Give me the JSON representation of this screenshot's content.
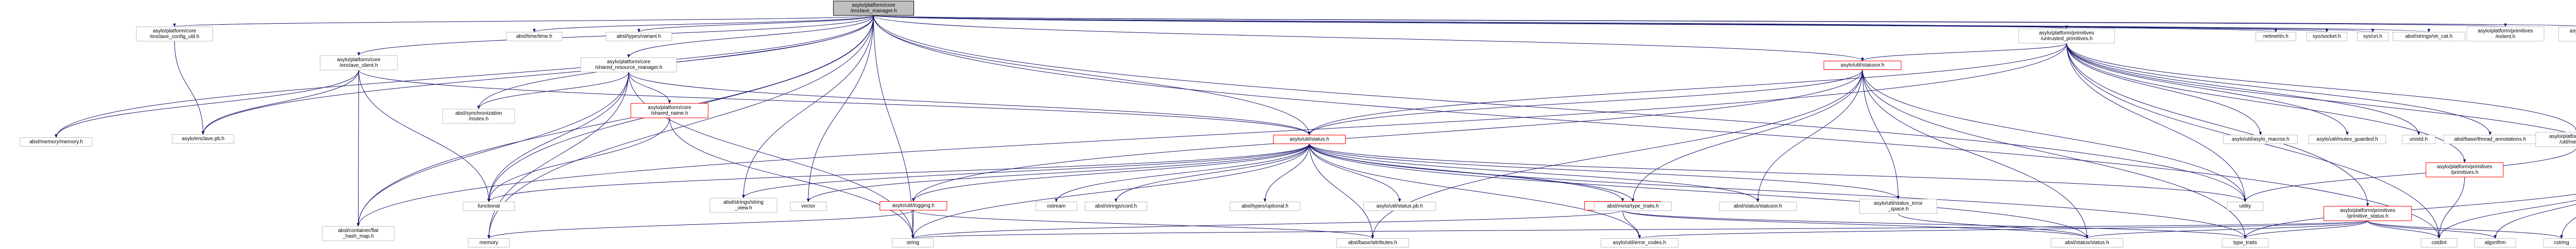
{
  "colors": {
    "edge": "#191970",
    "node_border": "#bfbfbf",
    "root_fill": "#bfbfbf",
    "red_border": "#ff0000"
  },
  "nodes": [
    {
      "id": "root",
      "lines": [
        "asylo/platform/core",
        "/enclave_manager.h"
      ],
      "style": "root"
    },
    {
      "id": "enclave_config_util",
      "lines": [
        "asylo/platform/core",
        "/enclave_config_util.h"
      ],
      "style": "normal"
    },
    {
      "id": "enclave_client",
      "lines": [
        "asylo/platform/core",
        "/enclave_client.h"
      ],
      "style": "normal"
    },
    {
      "id": "shared_resource_manager",
      "lines": [
        "asylo/platform/core",
        "/shared_resource_manager.h"
      ],
      "style": "normal"
    },
    {
      "id": "shared_name",
      "lines": [
        "asylo/platform/core",
        "/shared_name.h"
      ],
      "style": "red"
    },
    {
      "id": "untrusted_primitives",
      "lines": [
        "asylo/platform/primitives",
        "/untrusted_primitives.h"
      ],
      "style": "normal"
    },
    {
      "id": "statusor",
      "lines": [
        "asylo/util/statusor.h"
      ],
      "style": "red"
    },
    {
      "id": "status",
      "lines": [
        "asylo/util/status.h"
      ],
      "style": "red"
    },
    {
      "id": "primitives",
      "lines": [
        "asylo/platform/primitives",
        "/primitives.h"
      ],
      "style": "red"
    },
    {
      "id": "extent",
      "lines": [
        "asylo/platform/primitives",
        "/extent.h"
      ],
      "style": "red"
    },
    {
      "id": "primitive_status",
      "lines": [
        "asylo/platform/primitives",
        "/primitive_status.h"
      ],
      "style": "red"
    },
    {
      "id": "logging",
      "lines": [
        "asylo/util/logging.h"
      ],
      "style": "red"
    },
    {
      "id": "error_space",
      "lines": [
        "asylo/util/error_space.h"
      ],
      "style": "red"
    },
    {
      "id": "absl_time",
      "lines": [
        "absl/time/time.h"
      ],
      "style": "normal"
    },
    {
      "id": "absl_variant",
      "lines": [
        "absl/types/variant.h"
      ],
      "style": "normal"
    },
    {
      "id": "netinet_in",
      "lines": [
        "netinet/in.h"
      ],
      "style": "normal"
    },
    {
      "id": "sys_socket",
      "lines": [
        "sys/socket.h"
      ],
      "style": "normal"
    },
    {
      "id": "sys_un",
      "lines": [
        "sys/un.h"
      ],
      "style": "normal"
    },
    {
      "id": "str_cat",
      "lines": [
        "absl/strings/str_cat.h"
      ],
      "style": "normal"
    },
    {
      "id": "prim_extent_top",
      "lines": [
        "asylo/platform/primitives",
        "/extent.h"
      ],
      "style": "normal"
    },
    {
      "id": "prim_status_top",
      "lines": [
        "asylo/platform/primitives",
        "/primitive_status.h"
      ],
      "style": "normal"
    },
    {
      "id": "absl_memory",
      "lines": [
        "absl/memory/memory.h"
      ],
      "style": "normal"
    },
    {
      "id": "enclave_pb",
      "lines": [
        "asylo/enclave.pb.h"
      ],
      "style": "normal"
    },
    {
      "id": "mutex",
      "lines": [
        "absl/synchronization",
        "/mutex.h"
      ],
      "style": "normal"
    },
    {
      "id": "flat_hash_map",
      "lines": [
        "absl/container/flat",
        "_hash_map.h"
      ],
      "style": "normal"
    },
    {
      "id": "asylo_macros",
      "lines": [
        "asylo/util/asylo_macros.h"
      ],
      "style": "normal"
    },
    {
      "id": "mutex_guarded",
      "lines": [
        "asylo/util/mutex_guarded.h"
      ],
      "style": "normal"
    },
    {
      "id": "unistd",
      "lines": [
        "unistd.h"
      ],
      "style": "normal"
    },
    {
      "id": "thread_annotations",
      "lines": [
        "absl/base/thread_annotations.h"
      ],
      "style": "normal"
    },
    {
      "id": "util_message",
      "lines": [
        "asylo/platform/primitives",
        "/util/message.h"
      ],
      "style": "normal"
    },
    {
      "id": "functional",
      "lines": [
        "functional"
      ],
      "style": "normal"
    },
    {
      "id": "string_view",
      "lines": [
        "absl/strings/string",
        "_view.h"
      ],
      "style": "normal"
    },
    {
      "id": "vector",
      "lines": [
        "vector"
      ],
      "style": "normal"
    },
    {
      "id": "ostream",
      "lines": [
        "ostream"
      ],
      "style": "normal"
    },
    {
      "id": "cord",
      "lines": [
        "absl/strings/cord.h"
      ],
      "style": "normal"
    },
    {
      "id": "optional",
      "lines": [
        "absl/types/optional.h"
      ],
      "style": "normal"
    },
    {
      "id": "status_pb",
      "lines": [
        "asylo/util/status.pb.h"
      ],
      "style": "normal"
    },
    {
      "id": "type_traits_h",
      "lines": [
        "absl/meta/type_traits.h"
      ],
      "style": "normal"
    },
    {
      "id": "status_statusor",
      "lines": [
        "absl/status/statusor.h"
      ],
      "style": "normal"
    },
    {
      "id": "status_error_space",
      "lines": [
        "asylo/util/status_error",
        "_space.h"
      ],
      "style": "normal"
    },
    {
      "id": "utility",
      "lines": [
        "utility"
      ],
      "style": "normal"
    },
    {
      "id": "memory",
      "lines": [
        "memory"
      ],
      "style": "normal"
    },
    {
      "id": "string",
      "lines": [
        "string"
      ],
      "style": "normal"
    },
    {
      "id": "attributes",
      "lines": [
        "absl/base/attributes.h"
      ],
      "style": "normal"
    },
    {
      "id": "error_codes",
      "lines": [
        "asylo/util/error_codes.h"
      ],
      "style": "normal"
    },
    {
      "id": "absl_status",
      "lines": [
        "absl/status/status.h"
      ],
      "style": "normal"
    },
    {
      "id": "type_traits",
      "lines": [
        "type_traits"
      ],
      "style": "normal"
    },
    {
      "id": "cstdint",
      "lines": [
        "cstdint"
      ],
      "style": "normal"
    },
    {
      "id": "algorithm",
      "lines": [
        "algorithm"
      ],
      "style": "normal"
    },
    {
      "id": "cstring",
      "lines": [
        "cstring"
      ],
      "style": "normal"
    }
  ],
  "edges": [
    [
      "root",
      "enclave_config_util"
    ],
    [
      "root",
      "absl_time"
    ],
    [
      "root",
      "absl_variant"
    ],
    [
      "root",
      "enclave_client"
    ],
    [
      "root",
      "shared_resource_manager"
    ],
    [
      "root",
      "untrusted_primitives"
    ],
    [
      "root",
      "netinet_in"
    ],
    [
      "root",
      "sys_socket"
    ],
    [
      "root",
      "sys_un"
    ],
    [
      "root",
      "str_cat"
    ],
    [
      "root",
      "prim_extent_top"
    ],
    [
      "root",
      "prim_status_top"
    ],
    [
      "root",
      "absl_memory"
    ],
    [
      "root",
      "enclave_pb"
    ],
    [
      "root",
      "mutex"
    ],
    [
      "root",
      "flat_hash_map"
    ],
    [
      "root",
      "statusor"
    ],
    [
      "root",
      "status"
    ],
    [
      "root",
      "functional"
    ],
    [
      "root",
      "string_view"
    ],
    [
      "root",
      "vector"
    ],
    [
      "root",
      "utility"
    ],
    [
      "root",
      "memory"
    ],
    [
      "root",
      "string"
    ],
    [
      "root",
      "cstdint"
    ],
    [
      "enclave_config_util",
      "enclave_pb"
    ],
    [
      "enclave_client",
      "absl_memory"
    ],
    [
      "enclave_client",
      "enclave_pb"
    ],
    [
      "enclave_client",
      "flat_hash_map"
    ],
    [
      "enclave_client",
      "status"
    ],
    [
      "enclave_client",
      "functional"
    ],
    [
      "shared_resource_manager",
      "mutex"
    ],
    [
      "shared_resource_manager",
      "flat_hash_map"
    ],
    [
      "shared_resource_manager",
      "shared_name"
    ],
    [
      "shared_resource_manager",
      "status"
    ],
    [
      "shared_resource_manager",
      "functional"
    ],
    [
      "shared_resource_manager",
      "memory"
    ],
    [
      "shared_resource_manager",
      "string"
    ],
    [
      "shared_name",
      "functional"
    ],
    [
      "shared_name",
      "string"
    ],
    [
      "untrusted_primitives",
      "statusor"
    ],
    [
      "untrusted_primitives",
      "status"
    ],
    [
      "untrusted_primitives",
      "asylo_macros"
    ],
    [
      "untrusted_primitives",
      "mutex_guarded"
    ],
    [
      "untrusted_primitives",
      "unistd"
    ],
    [
      "untrusted_primitives",
      "thread_annotations"
    ],
    [
      "untrusted_primitives",
      "util_message"
    ],
    [
      "untrusted_primitives",
      "primitives"
    ],
    [
      "untrusted_primitives",
      "extent"
    ],
    [
      "untrusted_primitives",
      "primitive_status"
    ],
    [
      "untrusted_primitives",
      "flat_hash_map"
    ],
    [
      "untrusted_primitives",
      "utility"
    ],
    [
      "untrusted_primitives",
      "cstdint"
    ],
    [
      "statusor",
      "status"
    ],
    [
      "statusor",
      "logging"
    ],
    [
      "statusor",
      "type_traits_h"
    ],
    [
      "statusor",
      "status_statusor"
    ],
    [
      "statusor",
      "status_error_space"
    ],
    [
      "statusor",
      "utility"
    ],
    [
      "statusor",
      "attributes"
    ],
    [
      "statusor",
      "absl_status"
    ],
    [
      "statusor",
      "type_traits"
    ],
    [
      "status",
      "functional"
    ],
    [
      "status",
      "string_view"
    ],
    [
      "status",
      "vector"
    ],
    [
      "status",
      "ostream"
    ],
    [
      "status",
      "cord"
    ],
    [
      "status",
      "optional"
    ],
    [
      "status",
      "status_pb"
    ],
    [
      "status",
      "type_traits_h"
    ],
    [
      "status",
      "status_statusor"
    ],
    [
      "status",
      "status_error_space"
    ],
    [
      "status",
      "logging"
    ],
    [
      "status",
      "error_space"
    ],
    [
      "status",
      "utility"
    ],
    [
      "status",
      "string"
    ],
    [
      "status",
      "attributes"
    ],
    [
      "status",
      "error_codes"
    ],
    [
      "status",
      "absl_status"
    ],
    [
      "status",
      "type_traits"
    ],
    [
      "logging",
      "memory"
    ],
    [
      "logging",
      "string"
    ],
    [
      "logging",
      "attributes"
    ],
    [
      "error_space",
      "string"
    ],
    [
      "error_space",
      "error_codes"
    ],
    [
      "error_space",
      "absl_status"
    ],
    [
      "error_space",
      "type_traits"
    ],
    [
      "primitives",
      "cstdint"
    ],
    [
      "extent",
      "cstdint"
    ],
    [
      "extent",
      "algorithm"
    ],
    [
      "extent",
      "cstring"
    ],
    [
      "extent",
      "type_traits"
    ],
    [
      "primitive_status",
      "string"
    ],
    [
      "primitive_status",
      "error_codes"
    ],
    [
      "primitive_status",
      "absl_status"
    ],
    [
      "primitive_status",
      "type_traits"
    ],
    [
      "primitive_status",
      "cstdint"
    ],
    [
      "primitive_status",
      "algorithm"
    ],
    [
      "primitive_status",
      "cstring"
    ],
    [
      "util_message",
      "utility"
    ],
    [
      "status_error_space",
      "absl_status"
    ]
  ]
}
